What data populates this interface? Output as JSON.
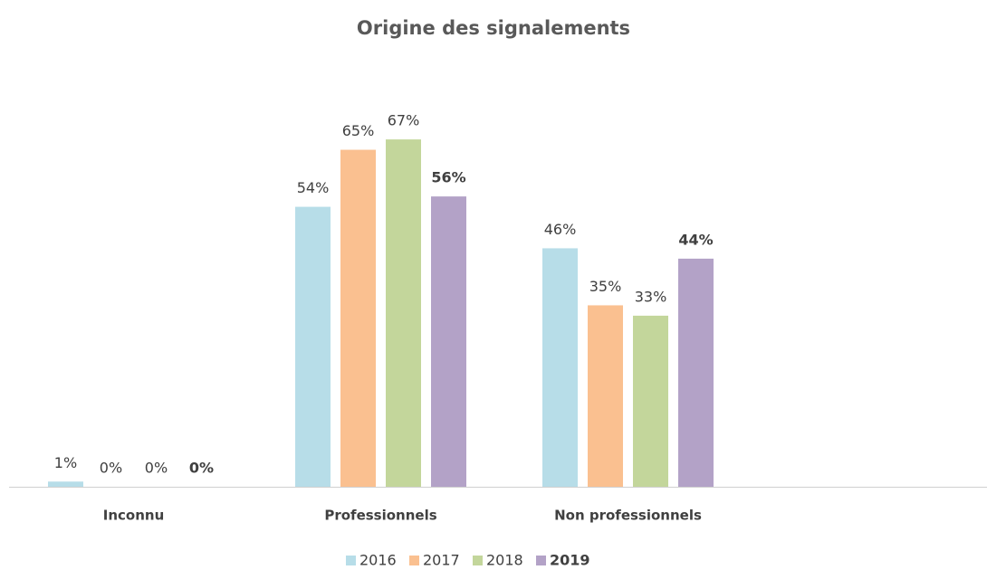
{
  "chart_data": {
    "type": "bar",
    "title": "Origine des signalements",
    "categories": [
      "Inconnu",
      "Professionnels",
      "Non professionnels"
    ],
    "series": [
      {
        "name": "2016",
        "color": "#b7dde8",
        "values": [
          1,
          54,
          46
        ],
        "value_labels": [
          "1%",
          "54%",
          "46%"
        ]
      },
      {
        "name": "2017",
        "color": "#fac090",
        "values": [
          0,
          65,
          35
        ],
        "value_labels": [
          "0%",
          "65%",
          "35%"
        ]
      },
      {
        "name": "2018",
        "color": "#c3d69b",
        "values": [
          0,
          67,
          33
        ],
        "value_labels": [
          "0%",
          "67%",
          "33%"
        ]
      },
      {
        "name": "2019",
        "color": "#b3a2c7",
        "values": [
          0,
          56,
          44
        ],
        "value_labels": [
          "0%",
          "56%",
          "44%"
        ],
        "bold": true
      }
    ]
  }
}
